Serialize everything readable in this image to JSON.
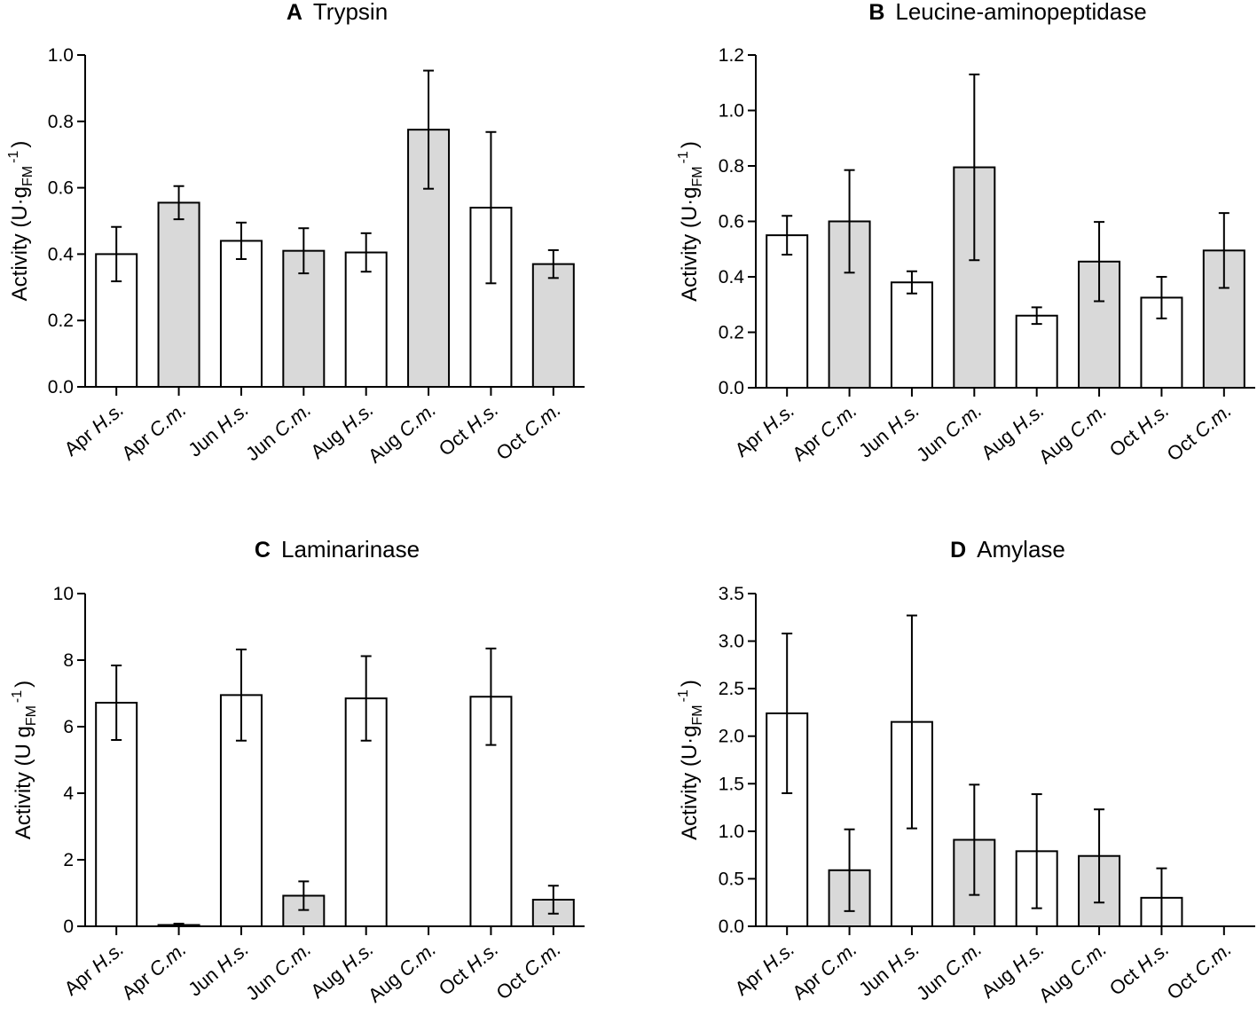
{
  "figure": {
    "bar_colors": {
      "H.s.": "#ffffff",
      "C.m.": "#d9d9d9"
    },
    "stroke_color": "#000000"
  },
  "chart_data": [
    {
      "id": "A",
      "type": "bar",
      "panel_letter": "A",
      "title": "Trypsin",
      "ylabel": {
        "prefix": "Activity  (U·g",
        "subscript": "FM",
        "superscript": "-1",
        "suffix": ")"
      },
      "ylim": [
        0,
        1.0
      ],
      "yticks": [
        0.0,
        0.2,
        0.4,
        0.6,
        0.8,
        1.0
      ],
      "ytick_labels": [
        "0.0",
        "0.2",
        "0.4",
        "0.6",
        "0.8",
        "1.0"
      ],
      "categories": [
        {
          "month": "Apr",
          "species": "H.s."
        },
        {
          "month": "Apr",
          "species": "C.m."
        },
        {
          "month": "Jun",
          "species": "H.s."
        },
        {
          "month": "Jun",
          "species": "C.m."
        },
        {
          "month": "Aug",
          "species": "H.s."
        },
        {
          "month": "Aug",
          "species": "C.m."
        },
        {
          "month": "Oct",
          "species": "H.s."
        },
        {
          "month": "Oct",
          "species": "C.m."
        }
      ],
      "values": [
        0.4,
        0.555,
        0.44,
        0.41,
        0.405,
        0.775,
        0.54,
        0.37
      ],
      "errors": [
        0.082,
        0.05,
        0.055,
        0.068,
        0.058,
        0.178,
        0.228,
        0.042
      ]
    },
    {
      "id": "B",
      "type": "bar",
      "panel_letter": "B",
      "title": "Leucine-aminopeptidase",
      "ylabel": {
        "prefix": "Activity  (U·g",
        "subscript": "FM",
        "superscript": "-1",
        "suffix": ")"
      },
      "ylim": [
        0,
        1.2
      ],
      "yticks": [
        0.0,
        0.2,
        0.4,
        0.6,
        0.8,
        1.0,
        1.2
      ],
      "ytick_labels": [
        "0.0",
        "0.2",
        "0.4",
        "0.6",
        "0.8",
        "1.0",
        "1.2"
      ],
      "categories": [
        {
          "month": "Apr",
          "species": "H.s."
        },
        {
          "month": "Apr",
          "species": "C.m."
        },
        {
          "month": "Jun",
          "species": "H.s."
        },
        {
          "month": "Jun",
          "species": "C.m."
        },
        {
          "month": "Aug",
          "species": "H.s."
        },
        {
          "month": "Aug",
          "species": "C.m."
        },
        {
          "month": "Oct",
          "species": "H.s."
        },
        {
          "month": "Oct",
          "species": "C.m."
        }
      ],
      "values": [
        0.55,
        0.6,
        0.38,
        0.795,
        0.26,
        0.455,
        0.325,
        0.495
      ],
      "errors": [
        0.07,
        0.185,
        0.04,
        0.335,
        0.03,
        0.143,
        0.075,
        0.135
      ]
    },
    {
      "id": "C",
      "type": "bar",
      "panel_letter": "C",
      "title": "Laminarinase",
      "ylabel": {
        "prefix": "Activity (U g",
        "subscript": "FM",
        "superscript": "-1",
        "suffix": ")"
      },
      "ylim": [
        0,
        10
      ],
      "yticks": [
        0,
        2,
        4,
        6,
        8,
        10
      ],
      "ytick_labels": [
        "0",
        "2",
        "4",
        "6",
        "8",
        "10"
      ],
      "categories": [
        {
          "month": "Apr",
          "species": "H.s."
        },
        {
          "month": "Apr",
          "species": "C.m."
        },
        {
          "month": "Jun",
          "species": "H.s."
        },
        {
          "month": "Jun",
          "species": "C.m."
        },
        {
          "month": "Aug",
          "species": "H.s."
        },
        {
          "month": "Aug",
          "species": "C.m."
        },
        {
          "month": "Oct",
          "species": "H.s."
        },
        {
          "month": "Oct",
          "species": "C.m."
        }
      ],
      "values": [
        6.72,
        0.04,
        6.95,
        0.92,
        6.85,
        0.0,
        6.9,
        0.8
      ],
      "errors": [
        1.12,
        0.04,
        1.37,
        0.43,
        1.27,
        0.0,
        1.45,
        0.42
      ]
    },
    {
      "id": "D",
      "type": "bar",
      "panel_letter": "D",
      "title": "Amylase",
      "ylabel": {
        "prefix": "Activity  (U·g",
        "subscript": "FM",
        "superscript": "-1",
        "suffix": ")"
      },
      "ylim": [
        0,
        3.5
      ],
      "yticks": [
        0.0,
        0.5,
        1.0,
        1.5,
        2.0,
        2.5,
        3.0,
        3.5
      ],
      "ytick_labels": [
        "0.0",
        "0.5",
        "1.0",
        "1.5",
        "2.0",
        "2.5",
        "3.0",
        "3.5"
      ],
      "categories": [
        {
          "month": "Apr",
          "species": "H.s."
        },
        {
          "month": "Apr",
          "species": "C.m."
        },
        {
          "month": "Jun",
          "species": "H.s."
        },
        {
          "month": "Jun",
          "species": "C.m."
        },
        {
          "month": "Aug",
          "species": "H.s."
        },
        {
          "month": "Aug",
          "species": "C.m."
        },
        {
          "month": "Oct",
          "species": "H.s."
        },
        {
          "month": "Oct",
          "species": "C.m."
        }
      ],
      "values": [
        2.24,
        0.59,
        2.15,
        0.91,
        0.79,
        0.74,
        0.3,
        0.0
      ],
      "errors": [
        0.84,
        0.43,
        1.12,
        0.58,
        0.6,
        0.49,
        0.31,
        0.0
      ]
    }
  ]
}
